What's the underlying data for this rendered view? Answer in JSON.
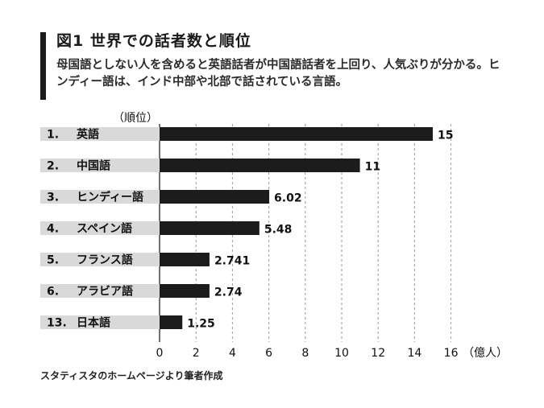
{
  "header": {
    "title": "図1 世界での話者数と順位",
    "subtitle": "母国語としない人を含めると英語話者が中国語話者を上回り、人気ぶりが分かる。ヒンディー語は、インド中部や北部で話されている言語。"
  },
  "footer": {
    "source": "スタティスタのホームページより筆者作成"
  },
  "chart_data": {
    "type": "bar",
    "orientation": "horizontal",
    "rank_caption": "（順位）",
    "unit_caption": "（億人）",
    "categories": [
      "1. 英語",
      "2. 中国語",
      "3. ヒンディー語",
      "4. スペイン語",
      "5. フランス語",
      "6. アラビア語",
      "13. 日本語"
    ],
    "ranks": [
      "1.",
      "2.",
      "3.",
      "4.",
      "5.",
      "6.",
      "13."
    ],
    "languages": [
      "英語",
      "中国語",
      "ヒンディー語",
      "スペイン語",
      "フランス語",
      "アラビア語",
      "日本語"
    ],
    "values": [
      15,
      11,
      6.02,
      5.48,
      2.741,
      2.74,
      1.25
    ],
    "value_labels": [
      "15",
      "11",
      "6.02",
      "5.48",
      "2.741",
      "2.74",
      "1.25"
    ],
    "xlim": [
      0,
      16
    ],
    "xticks": [
      "0",
      "2",
      "4",
      "6",
      "8",
      "10",
      "12",
      "14",
      "16"
    ],
    "grid": "vertical dashed",
    "colors": {
      "bar": "#1c1c1c",
      "label_band": "#d9d9d9"
    }
  }
}
